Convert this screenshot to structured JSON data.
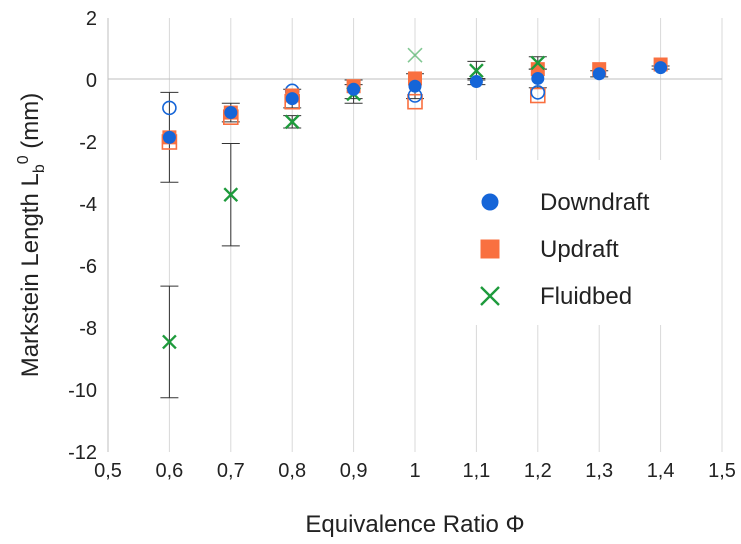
{
  "chart_data": {
    "type": "scatter",
    "xlabel": "Equivalence Ratio Φ",
    "ylabel_main": "Markstein Length L",
    "ylabel_sub": "b",
    "ylabel_sup": "0",
    "ylabel_unit": " (mm)",
    "xlim": [
      0.5,
      1.5
    ],
    "ylim": [
      -12,
      2
    ],
    "x_ticks": [
      0.5,
      0.6,
      0.7,
      0.8,
      0.9,
      1.0,
      1.1,
      1.2,
      1.3,
      1.4,
      1.5
    ],
    "x_tick_labels": [
      "0,5",
      "0,6",
      "0,7",
      "0,8",
      "0,9",
      "1",
      "1,1",
      "1,2",
      "1,3",
      "1,4",
      "1,5"
    ],
    "y_ticks": [
      2,
      0,
      -2,
      -4,
      -6,
      -8,
      -10,
      -12
    ],
    "y_tick_labels": [
      "2",
      "0",
      "-2",
      "-4",
      "-6",
      "-8",
      "-10",
      "-12"
    ],
    "grid": {
      "vertical": true,
      "horizontal": false
    },
    "legend_position": "center-right",
    "series": [
      {
        "name": "Downdraft",
        "marker": "circle",
        "color": "#1565d8",
        "points": [
          {
            "x": 0.6,
            "y": -1.85,
            "err": 1.45
          },
          {
            "x": 0.7,
            "y": -1.05,
            "err": 0.3
          },
          {
            "x": 0.8,
            "y": -0.6,
            "err": 0.3
          },
          {
            "x": 0.9,
            "y": -0.3,
            "err": 0.3
          },
          {
            "x": 1.0,
            "y": -0.2,
            "err": 0.4
          },
          {
            "x": 1.1,
            "y": -0.05,
            "err": 0.1
          },
          {
            "x": 1.2,
            "y": 0.05,
            "err": 0.3
          },
          {
            "x": 1.3,
            "y": 0.2,
            "err": 0.1
          },
          {
            "x": 1.4,
            "y": 0.4,
            "err": 0.05
          }
        ],
        "open_points": [
          {
            "x": 0.6,
            "y": -0.9
          },
          {
            "x": 0.8,
            "y": -0.35
          },
          {
            "x": 1.0,
            "y": -0.5
          },
          {
            "x": 1.2,
            "y": -0.4
          }
        ]
      },
      {
        "name": "Updraft",
        "marker": "square",
        "color": "#f97040",
        "points": [
          {
            "x": 0.6,
            "y": -1.85
          },
          {
            "x": 0.7,
            "y": -1.05
          },
          {
            "x": 0.8,
            "y": -0.5
          },
          {
            "x": 0.9,
            "y": -0.2
          },
          {
            "x": 1.0,
            "y": 0.05
          },
          {
            "x": 1.2,
            "y": 0.35
          },
          {
            "x": 1.3,
            "y": 0.35
          },
          {
            "x": 1.4,
            "y": 0.5
          }
        ],
        "open_points": [
          {
            "x": 0.6,
            "y": -2.0
          },
          {
            "x": 0.7,
            "y": -1.2
          },
          {
            "x": 0.8,
            "y": -0.7
          },
          {
            "x": 1.0,
            "y": -0.7
          },
          {
            "x": 1.2,
            "y": -0.5
          }
        ]
      },
      {
        "name": "Fluidbed",
        "marker": "x",
        "color": "#1e9b3c",
        "points": [
          {
            "x": 0.6,
            "y": -8.45,
            "err": 1.8
          },
          {
            "x": 0.7,
            "y": -3.7,
            "err": 1.65
          },
          {
            "x": 0.8,
            "y": -1.35,
            "err": 0.2
          },
          {
            "x": 0.9,
            "y": -0.45,
            "err": 0.3
          },
          {
            "x": 1.1,
            "y": 0.3,
            "err": 0.3
          },
          {
            "x": 1.2,
            "y": 0.55,
            "err": 0.2
          }
        ],
        "open_points": [
          {
            "x": 1.0,
            "y": 0.8
          }
        ]
      }
    ]
  }
}
